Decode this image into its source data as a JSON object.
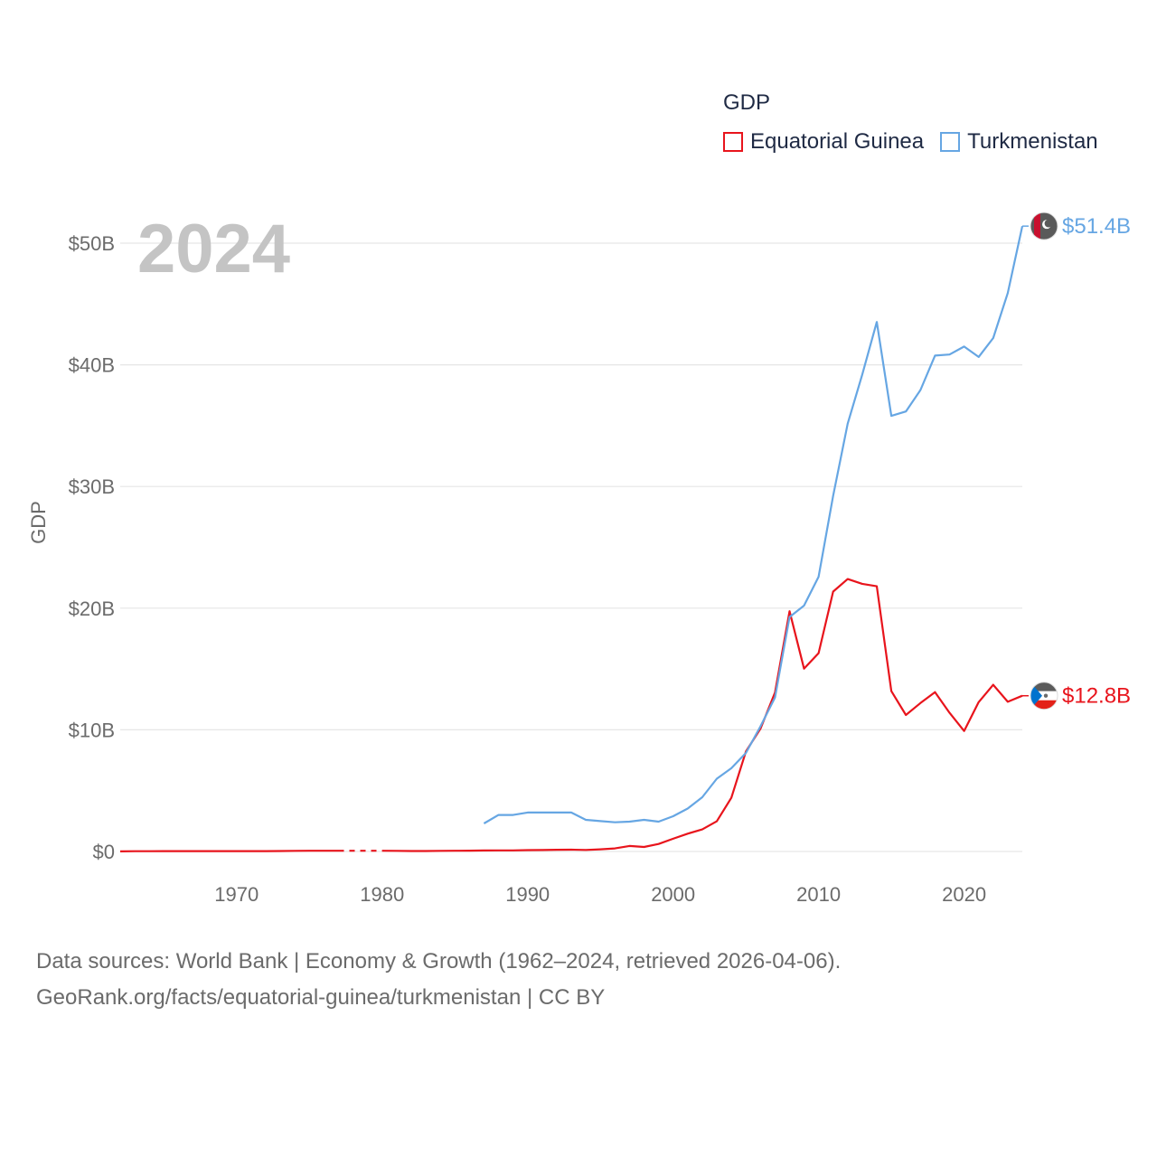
{
  "colors": {
    "equatorial_guinea": "#e8141c",
    "turkmenistan": "#66a6e3",
    "grid": "#e6e6e6",
    "axis_text": "#6b6b6b",
    "year_label": "#c4c4c4"
  },
  "legend": {
    "title": "GDP"
  },
  "footer": {
    "line1": "Data sources: World Bank | Economy & Growth (1962–2024, retrieved 2026-04-06).",
    "line2": "GeoRank.org/facts/equatorial-guinea/turkmenistan | CC BY"
  },
  "chart_data": {
    "type": "line",
    "title": "GDP",
    "year_label": "2024",
    "ylabel": "GDP",
    "xlabel": "",
    "xlim": [
      1962,
      2024
    ],
    "ylim": [
      0,
      50
    ],
    "x_ticks": [
      1970,
      1980,
      1990,
      2000,
      2010,
      2020
    ],
    "y_ticks": [
      0,
      10,
      20,
      30,
      40,
      50
    ],
    "y_tick_labels": [
      "$0",
      "$10B",
      "$20B",
      "$30B",
      "$40B",
      "$50B"
    ],
    "series": [
      {
        "name": "Equatorial Guinea",
        "key": "equatorial_guinea",
        "end_label": "$12.8B",
        "gap": [
          1977,
          1980
        ],
        "points": [
          [
            1962,
            0.01
          ],
          [
            1963,
            0.02
          ],
          [
            1964,
            0.02
          ],
          [
            1965,
            0.03
          ],
          [
            1966,
            0.03
          ],
          [
            1967,
            0.03
          ],
          [
            1968,
            0.03
          ],
          [
            1969,
            0.03
          ],
          [
            1970,
            0.03
          ],
          [
            1971,
            0.03
          ],
          [
            1972,
            0.03
          ],
          [
            1973,
            0.04
          ],
          [
            1974,
            0.05
          ],
          [
            1975,
            0.06
          ],
          [
            1976,
            0.06
          ],
          [
            1977,
            0.06
          ],
          [
            1978,
            0.06
          ],
          [
            1979,
            0.06
          ],
          [
            1980,
            0.06
          ],
          [
            1981,
            0.05
          ],
          [
            1982,
            0.04
          ],
          [
            1983,
            0.04
          ],
          [
            1984,
            0.05
          ],
          [
            1985,
            0.06
          ],
          [
            1986,
            0.07
          ],
          [
            1987,
            0.08
          ],
          [
            1988,
            0.09
          ],
          [
            1989,
            0.09
          ],
          [
            1990,
            0.11
          ],
          [
            1991,
            0.12
          ],
          [
            1992,
            0.14
          ],
          [
            1993,
            0.15
          ],
          [
            1994,
            0.13
          ],
          [
            1995,
            0.18
          ],
          [
            1996,
            0.25
          ],
          [
            1997,
            0.45
          ],
          [
            1998,
            0.37
          ],
          [
            1999,
            0.62
          ],
          [
            2000,
            1.05
          ],
          [
            2001,
            1.46
          ],
          [
            2002,
            1.81
          ],
          [
            2003,
            2.48
          ],
          [
            2004,
            4.41
          ],
          [
            2005,
            8.22
          ],
          [
            2006,
            10.09
          ],
          [
            2007,
            13.07
          ],
          [
            2008,
            19.75
          ],
          [
            2009,
            15.03
          ],
          [
            2010,
            16.3
          ],
          [
            2011,
            21.36
          ],
          [
            2012,
            22.39
          ],
          [
            2013,
            22.0
          ],
          [
            2014,
            21.8
          ],
          [
            2015,
            13.18
          ],
          [
            2016,
            11.22
          ],
          [
            2017,
            12.2
          ],
          [
            2018,
            13.1
          ],
          [
            2019,
            11.4
          ],
          [
            2020,
            9.9
          ],
          [
            2021,
            12.27
          ],
          [
            2022,
            13.7
          ],
          [
            2023,
            12.3
          ],
          [
            2024,
            12.8
          ]
        ]
      },
      {
        "name": "Turkmenistan",
        "key": "turkmenistan",
        "end_label": "$51.4B",
        "points": [
          [
            1987,
            2.3
          ],
          [
            1988,
            3.0
          ],
          [
            1989,
            3.0
          ],
          [
            1990,
            3.2
          ],
          [
            1991,
            3.2
          ],
          [
            1992,
            3.2
          ],
          [
            1993,
            3.2
          ],
          [
            1994,
            2.6
          ],
          [
            1995,
            2.5
          ],
          [
            1996,
            2.4
          ],
          [
            1997,
            2.45
          ],
          [
            1998,
            2.6
          ],
          [
            1999,
            2.45
          ],
          [
            2000,
            2.9
          ],
          [
            2001,
            3.53
          ],
          [
            2002,
            4.46
          ],
          [
            2003,
            5.98
          ],
          [
            2004,
            6.84
          ],
          [
            2005,
            8.1
          ],
          [
            2006,
            10.28
          ],
          [
            2007,
            12.66
          ],
          [
            2008,
            19.27
          ],
          [
            2009,
            20.21
          ],
          [
            2010,
            22.58
          ],
          [
            2011,
            29.23
          ],
          [
            2012,
            35.16
          ],
          [
            2013,
            39.2
          ],
          [
            2014,
            43.52
          ],
          [
            2015,
            35.8
          ],
          [
            2016,
            36.17
          ],
          [
            2017,
            37.93
          ],
          [
            2018,
            40.76
          ],
          [
            2019,
            40.85
          ],
          [
            2020,
            41.5
          ],
          [
            2021,
            40.65
          ],
          [
            2022,
            42.2
          ],
          [
            2023,
            45.9
          ],
          [
            2024,
            51.4
          ]
        ]
      }
    ]
  }
}
